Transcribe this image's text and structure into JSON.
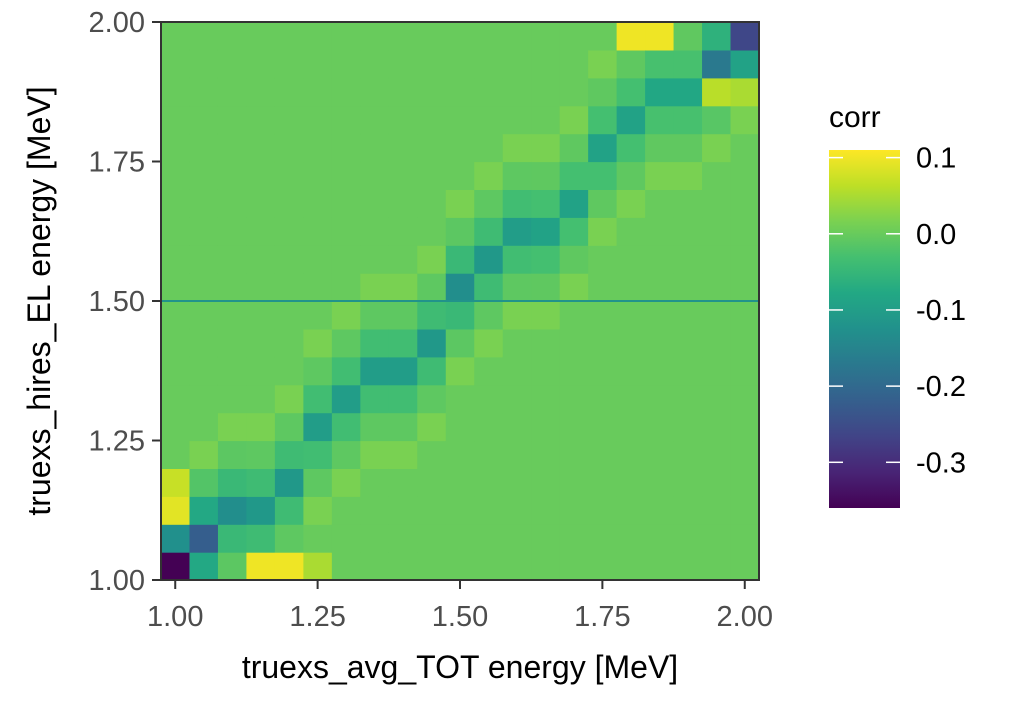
{
  "chart_data": {
    "type": "heatmap",
    "title": "",
    "xlabel": "truexs_avg_TOT energy [MeV]",
    "ylabel": "truexs_hires_EL energy [MeV]",
    "xlim": [
      0.975,
      2.025
    ],
    "ylim": [
      1.0,
      2.0
    ],
    "x_ticks": [
      1.0,
      1.25,
      1.5,
      1.75,
      2.0
    ],
    "x_tick_labels": [
      "1.00",
      "1.25",
      "1.50",
      "1.75",
      "2.00"
    ],
    "y_ticks": [
      1.0,
      1.25,
      1.5,
      1.75,
      2.0
    ],
    "y_tick_labels": [
      "1.00",
      "1.25",
      "1.50",
      "1.75",
      "2.00"
    ],
    "x_bins": {
      "start": 0.975,
      "width": 0.05,
      "count": 21
    },
    "y_bins": {
      "start": 1.0,
      "width": 0.05,
      "count": 20
    },
    "background_value": 0.0,
    "diagonal_band": [
      {
        "x": 1.0,
        "y": 1.0,
        "value": -0.36
      },
      {
        "x": 1.05,
        "y": 1.05,
        "value": -0.22
      },
      {
        "x": 1.1,
        "y": 1.1,
        "value": -0.13
      },
      {
        "x": 1.15,
        "y": 1.15,
        "value": -0.11
      },
      {
        "x": 1.2,
        "y": 1.2,
        "value": -0.11
      },
      {
        "x": 1.25,
        "y": 1.25,
        "value": -0.1
      },
      {
        "x": 1.3,
        "y": 1.3,
        "value": -0.1
      },
      {
        "x": 1.35,
        "y": 1.35,
        "value": -0.1
      },
      {
        "x": 1.4,
        "y": 1.4,
        "value": -0.1
      },
      {
        "x": 1.45,
        "y": 1.45,
        "value": -0.11
      },
      {
        "x": 1.5,
        "y": 1.5,
        "value": -0.13
      },
      {
        "x": 1.55,
        "y": 1.55,
        "value": -0.11
      },
      {
        "x": 1.6,
        "y": 1.6,
        "value": -0.1
      },
      {
        "x": 1.65,
        "y": 1.65,
        "value": -0.09
      },
      {
        "x": 1.7,
        "y": 1.7,
        "value": -0.09
      },
      {
        "x": 1.75,
        "y": 1.75,
        "value": -0.09
      },
      {
        "x": 1.8,
        "y": 1.8,
        "value": -0.09
      },
      {
        "x": 1.85,
        "y": 1.85,
        "value": -0.08
      },
      {
        "x": 1.9,
        "y": 1.9,
        "value": -0.08
      },
      {
        "x": 1.95,
        "y": 1.95,
        "value": -0.17
      },
      {
        "x": 2.0,
        "y": 1.975,
        "value": -0.26
      }
    ],
    "off_diagonal_cells": [
      {
        "x": 1.15,
        "y": 1.0,
        "value": 0.1
      },
      {
        "x": 1.2,
        "y": 1.0,
        "value": 0.1
      },
      {
        "x": 1.25,
        "y": 1.0,
        "value": 0.05
      },
      {
        "x": 1.0,
        "y": 1.15,
        "value": 0.09
      },
      {
        "x": 1.0,
        "y": 1.2,
        "value": 0.07
      },
      {
        "x": 1.8,
        "y": 1.975,
        "value": 0.1
      },
      {
        "x": 1.85,
        "y": 1.975,
        "value": 0.1
      },
      {
        "x": 1.95,
        "y": 1.85,
        "value": 0.06
      },
      {
        "x": 2.0,
        "y": 1.85,
        "value": 0.07
      },
      {
        "x": 2.0,
        "y": 1.9,
        "value": 0.05
      }
    ],
    "horizontal_line": {
      "y": 1.5,
      "value": -0.12
    },
    "colorbar": {
      "title": "corr",
      "min": -0.36,
      "max": 0.11,
      "ticks": [
        0.1,
        0.0,
        -0.1,
        -0.2,
        -0.3
      ],
      "tick_labels": [
        "0.1",
        "0.0",
        "-0.1",
        "-0.2",
        "-0.3"
      ],
      "palette": "viridis"
    }
  }
}
